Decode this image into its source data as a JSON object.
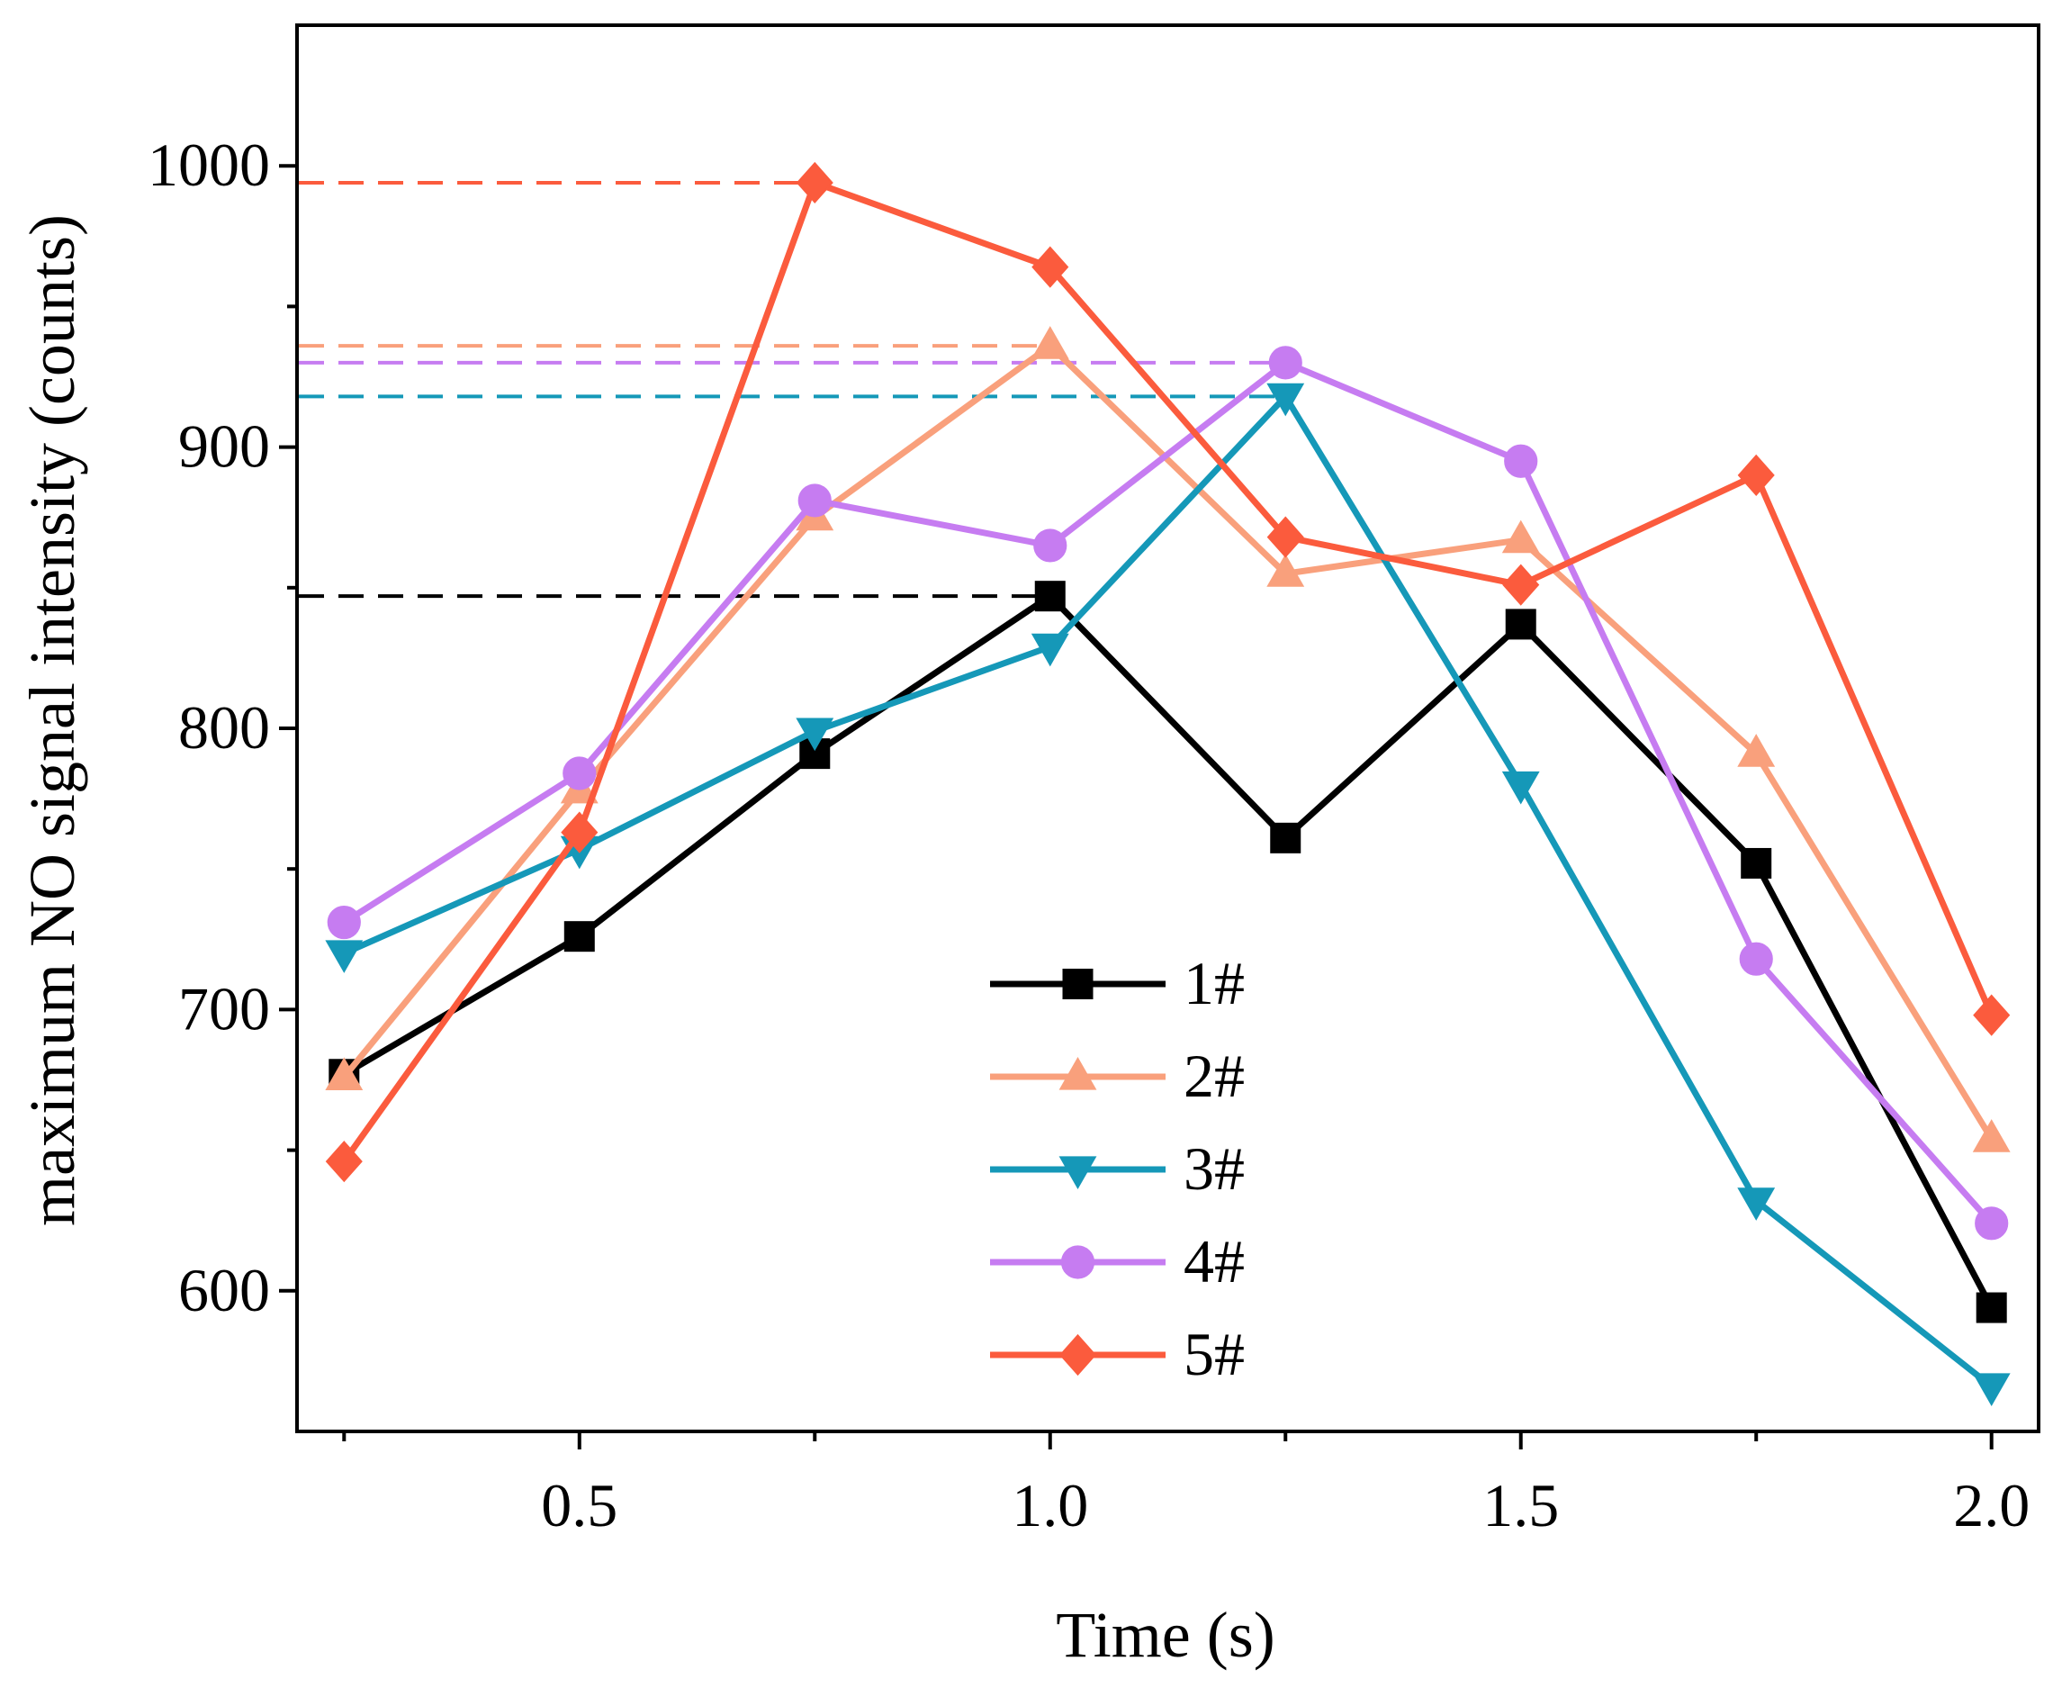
{
  "chart_data": {
    "type": "line",
    "title": "",
    "xlabel": "Time (s)",
    "ylabel": "maximum NO signal intensity (counts)",
    "xlim": [
      0.2,
      2.05
    ],
    "ylim": [
      550,
      1050
    ],
    "x_ticks": [
      0.5,
      1.0,
      1.5,
      2.0
    ],
    "x_tick_labels": [
      "0.5",
      "1.0",
      "1.5",
      "2.0"
    ],
    "x_minor_ticks": [
      0.25,
      0.75,
      1.25,
      1.75
    ],
    "y_ticks": [
      600,
      700,
      800,
      900,
      1000
    ],
    "y_tick_labels": [
      "600",
      "700",
      "800",
      "900",
      "1000"
    ],
    "y_minor_ticks": [
      650,
      750,
      850,
      950
    ],
    "legend_position": "bottom-center",
    "x": [
      0.25,
      0.5,
      0.75,
      1.0,
      1.25,
      1.5,
      1.75,
      2.0
    ],
    "series": [
      {
        "name": "1#",
        "color": "#000000",
        "marker": "square",
        "values": [
          677,
          726,
          791,
          847,
          761,
          837,
          752,
          594
        ],
        "max_x": 1.0,
        "max_value": 847
      },
      {
        "name": "2#",
        "color": "#f9a07c",
        "marker": "triangle-up",
        "values": [
          676,
          778,
          875,
          936,
          855,
          867,
          791,
          654
        ],
        "max_x": 1.0,
        "max_value": 936
      },
      {
        "name": "3#",
        "color": "#1598b8",
        "marker": "triangle-down",
        "values": [
          720,
          757,
          799,
          829,
          918,
          780,
          632,
          566
        ],
        "max_x": 1.25,
        "max_value": 918
      },
      {
        "name": "4#",
        "color": "#c67cf1",
        "marker": "circle",
        "values": [
          731,
          784,
          881,
          865,
          930,
          895,
          718,
          624
        ],
        "max_x": 1.25,
        "max_value": 930
      },
      {
        "name": "5#",
        "color": "#fb5b3d",
        "marker": "diamond",
        "values": [
          646,
          763,
          994,
          964,
          868,
          851,
          890,
          698
        ],
        "max_x": 0.75,
        "max_value": 994
      }
    ]
  }
}
